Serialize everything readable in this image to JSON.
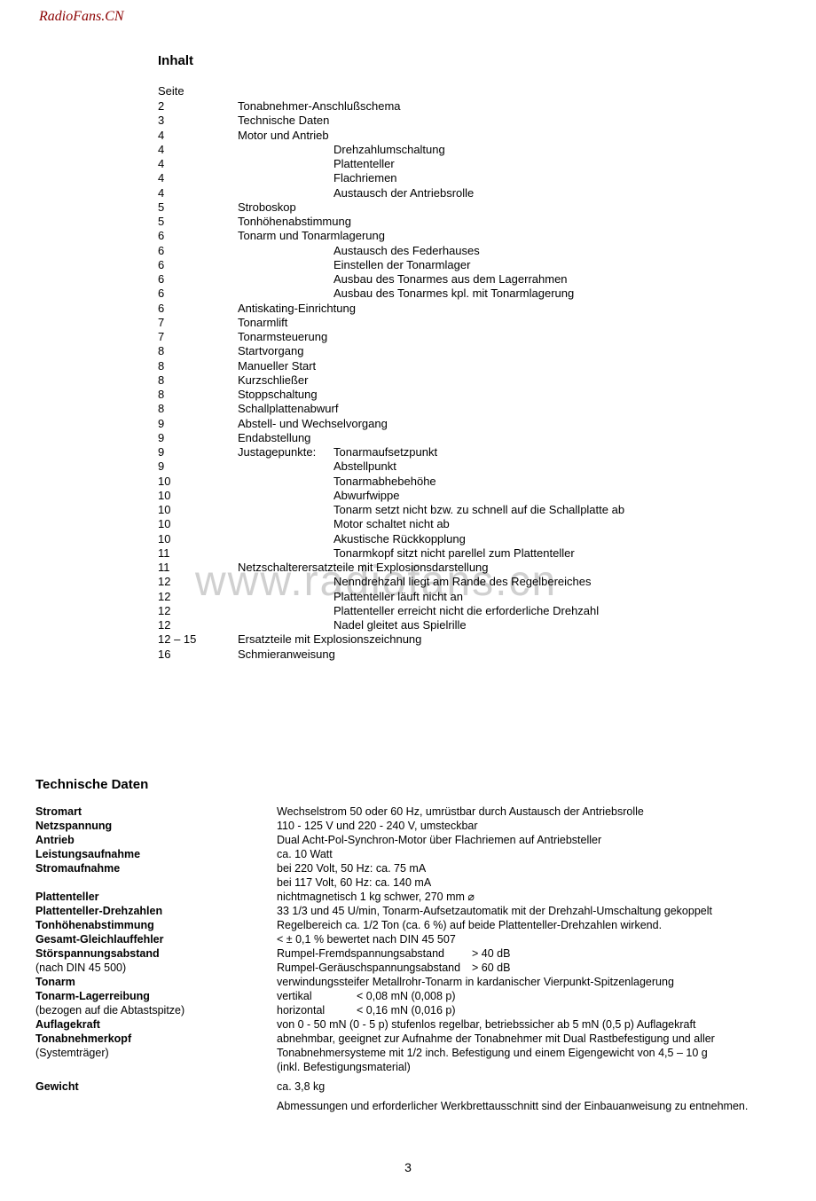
{
  "header_link": "RadioFans.CN",
  "watermark": "www.radiofans.cn",
  "page_number": "3",
  "inhalt": {
    "title": "Inhalt",
    "seite_label": "Seite",
    "rows": [
      {
        "page": "2",
        "text": "Tonabnehmer-Anschlußschema",
        "indent": 0
      },
      {
        "page": "3",
        "text": "Technische Daten",
        "indent": 0
      },
      {
        "page": "4",
        "text": "Motor und Antrieb",
        "indent": 0
      },
      {
        "page": "4",
        "text": "Drehzahlumschaltung",
        "indent": 1
      },
      {
        "page": "4",
        "text": "Plattenteller",
        "indent": 1
      },
      {
        "page": "4",
        "text": "Flachriemen",
        "indent": 1
      },
      {
        "page": "4",
        "text": "Austausch der Antriebsrolle",
        "indent": 1
      },
      {
        "page": "5",
        "text": "Stroboskop",
        "indent": 0
      },
      {
        "page": "5",
        "text": "Tonhöhenabstimmung",
        "indent": 0
      },
      {
        "page": "6",
        "text": "Tonarm und Tonarmlagerung",
        "indent": 0
      },
      {
        "page": "6",
        "text": "Austausch des Federhauses",
        "indent": 1
      },
      {
        "page": "6",
        "text": "Einstellen der Tonarmlager",
        "indent": 1
      },
      {
        "page": "6",
        "text": "Ausbau des Tonarmes aus dem Lagerrahmen",
        "indent": 1
      },
      {
        "page": "6",
        "text": "Ausbau des Tonarmes kpl. mit Tonarmlagerung",
        "indent": 1
      },
      {
        "page": "6",
        "text": "Antiskating-Einrichtung",
        "indent": 0
      },
      {
        "page": "7",
        "text": "Tonarmlift",
        "indent": 0
      },
      {
        "page": "7",
        "text": "Tonarmsteuerung",
        "indent": 0
      },
      {
        "page": "8",
        "text": "Startvorgang",
        "indent": 0
      },
      {
        "page": "8",
        "text": "Manueller Start",
        "indent": 0
      },
      {
        "page": "8",
        "text": "Kurzschließer",
        "indent": 0
      },
      {
        "page": "8",
        "text": "Stoppschaltung",
        "indent": 0
      },
      {
        "page": "8",
        "text": "Schallplattenabwurf",
        "indent": 0
      },
      {
        "page": "9",
        "text": "Abstell- und Wechselvorgang",
        "indent": 0
      },
      {
        "page": "9",
        "text": "Endabstellung",
        "indent": 0
      },
      {
        "page": "9",
        "text": "Tonarmaufsetzpunkt",
        "indent": 0,
        "prefix": "Justagepunkte:"
      },
      {
        "page": "9",
        "text": "Abstellpunkt",
        "indent": 1
      },
      {
        "page": "10",
        "text": "Tonarmabhebehöhe",
        "indent": 1
      },
      {
        "page": "10",
        "text": "Abwurfwippe",
        "indent": 1
      },
      {
        "page": "10",
        "text": "Tonarm setzt nicht bzw. zu schnell auf die Schallplatte ab",
        "indent": 1
      },
      {
        "page": "10",
        "text": "Motor schaltet nicht ab",
        "indent": 1
      },
      {
        "page": "10",
        "text": "Akustische Rückkopplung",
        "indent": 1
      },
      {
        "page": "11",
        "text": "Tonarmkopf sitzt nicht parellel zum Plattenteller",
        "indent": 1
      },
      {
        "page": "11",
        "text": "Netzschalterersatzteile mit Explosionsdarstellung",
        "indent": 0
      },
      {
        "page": "12",
        "text": "Nenndrehzahl liegt am Rande des Regelbereiches",
        "indent": 1
      },
      {
        "page": "12",
        "text": "Plattenteller läuft nicht an",
        "indent": 1
      },
      {
        "page": "12",
        "text": "Plattenteller erreicht nicht die erforderliche Drehzahl",
        "indent": 1
      },
      {
        "page": "12",
        "text": "Nadel gleitet aus Spielrille",
        "indent": 1
      },
      {
        "page": "12 – 15",
        "text": "Ersatzteile mit Explosionszeichnung",
        "indent": 0
      },
      {
        "page": "16",
        "text": "Schmieranweisung",
        "indent": 0
      }
    ]
  },
  "tech": {
    "title": "Technische Daten",
    "rows": [
      {
        "label": "Stromart",
        "value": "Wechselstrom 50 oder 60 Hz, umrüstbar durch Austausch der Antriebsrolle"
      },
      {
        "label": "Netzspannung",
        "value": "110 - 125 V und 220 - 240 V, umsteckbar"
      },
      {
        "label": "Antrieb",
        "value": "Dual Acht-Pol-Synchron-Motor über Flachriemen auf Antriebsteller"
      },
      {
        "label": "Leistungsaufnahme",
        "value": "ca. 10 Watt"
      },
      {
        "label": "Stromaufnahme",
        "value": "bei 220 Volt, 50 Hz: ca.  75 mA"
      },
      {
        "label": "",
        "value": "bei 117 Volt, 60 Hz: ca. 140 mA",
        "sub": true
      },
      {
        "label": "Plattenteller",
        "value": "nichtmagnetisch 1 kg schwer, 270 mm ⌀"
      },
      {
        "label": "Plattenteller-Drehzahlen",
        "value": "33 1/3 und 45 U/min, Tonarm-Aufsetzautomatik mit der Drehzahl-Umschaltung gekoppelt"
      },
      {
        "label": "Tonhöhenabstimmung",
        "value": "Regelbereich ca. 1/2 Ton (ca. 6 %) auf beide Plattenteller-Drehzahlen wirkend."
      },
      {
        "label": "Gesamt-Gleichlauffehler",
        "value": "< ± 0,1 % bewertet nach DIN 45 507"
      },
      {
        "label": "Störspannungsabstand",
        "col1": "Rumpel-Fremdspannungsabstand",
        "col2": "> 40 dB",
        "two_col": true
      },
      {
        "label": "(nach DIN 45 500)",
        "col1": "Rumpel-Geräuschspannungsabstand",
        "col2": "> 60 dB",
        "two_col": true,
        "sub": true
      },
      {
        "label": "Tonarm",
        "value": "verwindungssteifer Metallrohr-Tonarm in kardanischer Vierpunkt-Spitzenlagerung"
      },
      {
        "label": "Tonarm-Lagerreibung",
        "col1": "vertikal",
        "col2": "< 0,08 mN (0,008 p)",
        "vert": true
      },
      {
        "label": "(bezogen auf die Abtastspitze)",
        "col1": "horizontal",
        "col2": "< 0,16 mN (0,016 p)",
        "vert": true,
        "sub": true
      },
      {
        "label": "Auflagekraft",
        "value": "von 0 - 50 mN (0 - 5 p) stufenlos regelbar, betriebssicher ab 5 mN (0,5 p) Auflagekraft"
      },
      {
        "label": "Tonabnehmerkopf",
        "value": "abnehmbar, geeignet zur Aufnahme der Tonabnehmer mit Dual Rastbefestigung und aller"
      },
      {
        "label": "(Systemträger)",
        "value": "Tonabnehmersysteme mit 1/2 inch. Befestigung und einem Eigengewicht von 4,5 – 10 g",
        "sub": true
      },
      {
        "label": "",
        "value": "(inkl. Befestigungsmaterial)",
        "sub": true
      },
      {
        "label": "Gewicht",
        "value": "ca. 3,8 kg",
        "gap_before": true
      },
      {
        "label": "",
        "value": "Abmessungen und erforderlicher Werkbrettausschnitt sind der Einbauanweisung zu entnehmen.",
        "sub": true,
        "gap_before": true
      }
    ]
  }
}
